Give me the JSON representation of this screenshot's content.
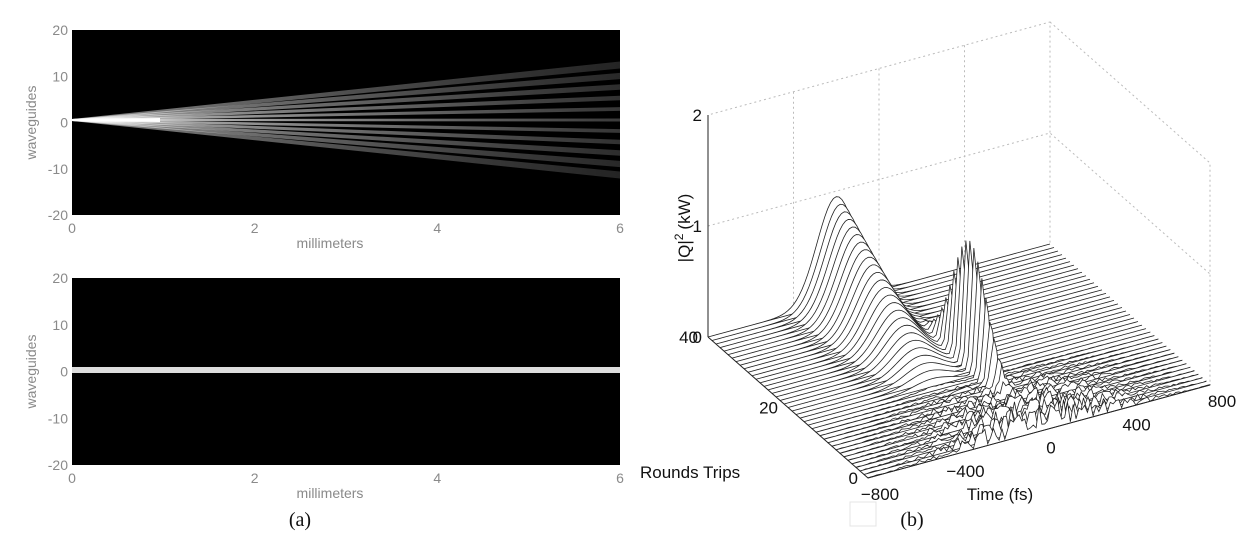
{
  "panels": {
    "a": {
      "caption": "(a)",
      "top": {
        "ylabel": "waveguides",
        "xlabel": "millimeters",
        "yticks": [
          "20",
          "10",
          "0",
          "-10",
          "-20"
        ],
        "xticks": [
          "0",
          "2",
          "4",
          "6"
        ]
      },
      "bottom": {
        "ylabel": "waveguides",
        "xlabel": "millimeters",
        "yticks": [
          "20",
          "10",
          "0",
          "-10",
          "-20"
        ],
        "xticks": [
          "0",
          "2",
          "4",
          "6"
        ]
      }
    },
    "b": {
      "caption": "(b)",
      "zlabel": {
        "base": "|Q|",
        "sup": "2",
        "unit": "(kW)"
      },
      "zticks": [
        "0",
        "1",
        "2"
      ],
      "ylabel": "Rounds Trips",
      "yticks": [
        "0",
        "20",
        "40"
      ],
      "xlabel": "Time (fs)",
      "xticks": [
        "−800",
        "−400",
        "0",
        "400",
        "800"
      ]
    }
  }
}
